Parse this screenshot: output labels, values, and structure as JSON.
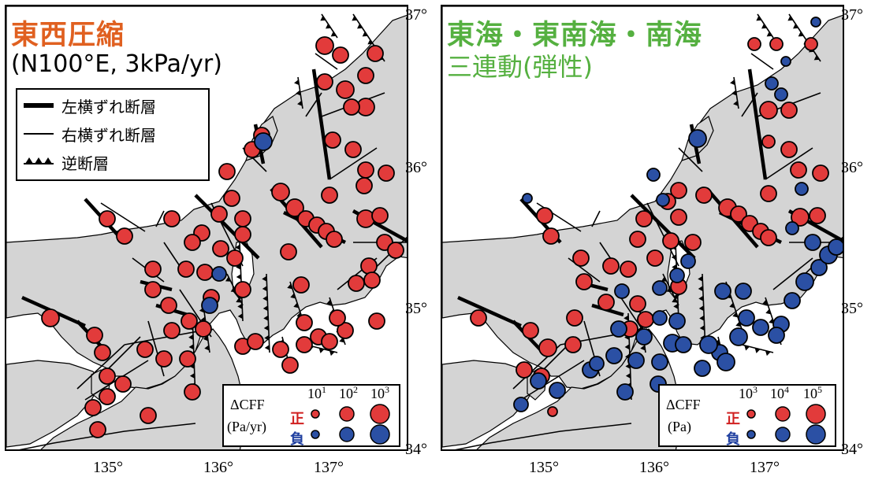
{
  "colors": {
    "land": "#d4d4d4",
    "sea": "#ffffff",
    "positive": "#e23b3b",
    "negative": "#2b50a4",
    "title_left": "#e06020",
    "title_right": "#55b040",
    "sign_positive": "#d02020",
    "sign_negative": "#2040a0"
  },
  "axes": {
    "lat_labels": [
      "37°",
      "36°",
      "35°",
      "34°"
    ],
    "lon_labels": [
      "135°",
      "136°",
      "137°"
    ]
  },
  "left_panel": {
    "title_line1": "東西圧縮",
    "title_line2": "(N100°E, 3kPa/yr)",
    "legend": {
      "left_lateral": "左横ずれ断層",
      "right_lateral": "右横ずれ断層",
      "reverse": "逆断層"
    },
    "cff_legend": {
      "label": "ΔCFF",
      "unit": "(Pa/yr)",
      "positive": "正",
      "negative": "負",
      "mag1": "10",
      "exp1": "1",
      "mag2": "10",
      "exp2": "2",
      "mag3": "10",
      "exp3": "3"
    }
  },
  "right_panel": {
    "title_line1": "東海・東南海・南海",
    "title_line2": "三連動(弾性)",
    "cff_legend": {
      "label": "ΔCFF",
      "unit": "(Pa)",
      "positive": "正",
      "negative": "負",
      "mag1": "10",
      "exp1": "3",
      "mag2": "10",
      "exp2": "4",
      "mag3": "10",
      "exp3": "5"
    }
  }
}
